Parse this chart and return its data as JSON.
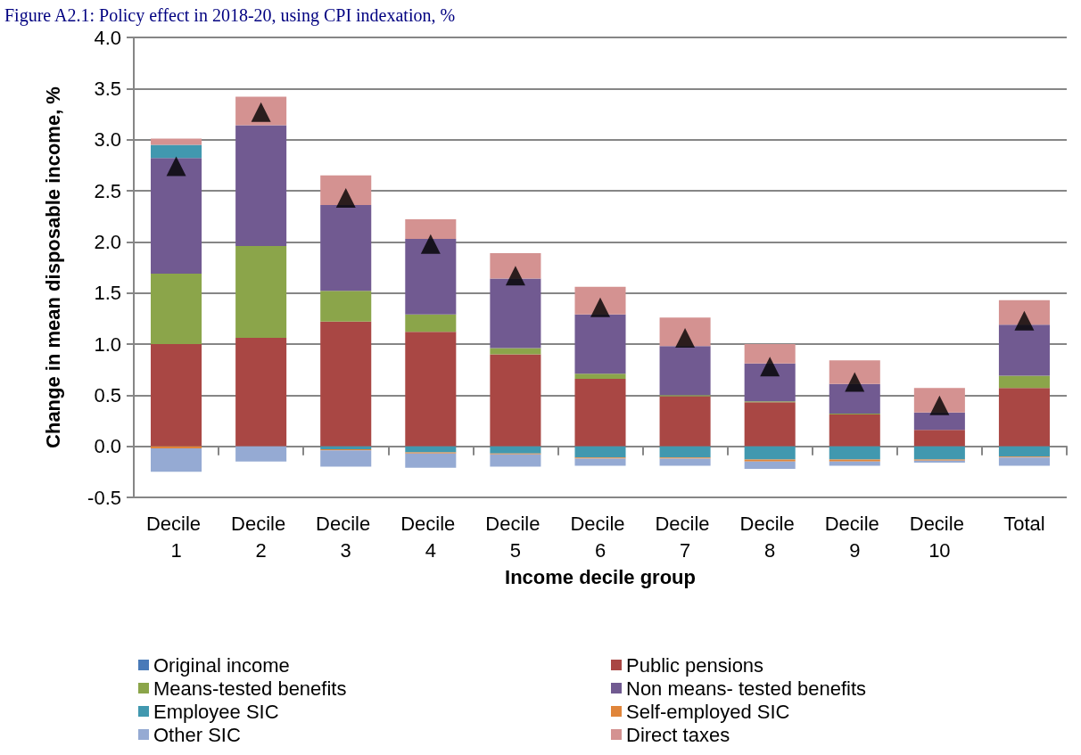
{
  "chart_data": {
    "type": "bar",
    "title": "Figure A2.1: Policy effect in 2018-20, using CPI indexation, %",
    "xlabel": "Income decile group",
    "ylabel": "Change in mean disposable income, %",
    "categories": [
      "Decile 1",
      "Decile 2",
      "Decile 3",
      "Decile 4",
      "Decile 5",
      "Decile 6",
      "Decile 7",
      "Decile 8",
      "Decile 9",
      "Decile 10",
      "Total"
    ],
    "stacked": true,
    "grid": "y",
    "legend": "bottom",
    "ylim": [
      -0.5,
      4.0
    ],
    "yticks": [
      {
        "value": -0.5,
        "label": "-0.5"
      },
      {
        "value": 0,
        "label": "0.0"
      },
      {
        "value": 0.5,
        "label": "0.5"
      },
      {
        "value": 1,
        "label": "1.0"
      },
      {
        "value": 1.5,
        "label": "1.5"
      },
      {
        "value": 2,
        "label": "2.0"
      },
      {
        "value": 2.5,
        "label": "2.5"
      },
      {
        "value": 3,
        "label": "3.0"
      },
      {
        "value": 3.5,
        "label": "3.5"
      },
      {
        "value": 4,
        "label": "4.0"
      }
    ],
    "series": [
      {
        "name": "Original income",
        "color": "#4a7ab8",
        "values": [
          0,
          0,
          0,
          0,
          0,
          0,
          0,
          0,
          0,
          0,
          0
        ]
      },
      {
        "name": "Public pensions",
        "color": "#a94744",
        "values": [
          1.0,
          1.06,
          1.22,
          1.12,
          0.9,
          0.66,
          0.49,
          0.43,
          0.31,
          0.16,
          0.57
        ]
      },
      {
        "name": "Means-tested benefits",
        "color": "#8ba54a",
        "values": [
          0.69,
          0.9,
          0.3,
          0.17,
          0.06,
          0.05,
          0.01,
          0.01,
          0.01,
          0,
          0.12
        ]
      },
      {
        "name": "Non means- tested benefits",
        "color": "#715a91",
        "values": [
          1.13,
          1.18,
          0.84,
          0.74,
          0.68,
          0.58,
          0.48,
          0.37,
          0.29,
          0.17,
          0.5
        ]
      },
      {
        "name": "Employee SIC",
        "color": "#4198af",
        "values": [
          0.13,
          0,
          -0.03,
          -0.06,
          -0.07,
          -0.11,
          -0.11,
          -0.13,
          -0.13,
          -0.13,
          -0.1
        ]
      },
      {
        "name": "Self-employed SIC",
        "color": "#e0853a",
        "values": [
          -0.02,
          0,
          -0.01,
          -0.01,
          -0.01,
          -0.01,
          -0.01,
          -0.02,
          -0.02,
          -0.01,
          -0.01
        ]
      },
      {
        "name": "Other SIC",
        "color": "#95aad3",
        "values": [
          -0.23,
          -0.15,
          -0.16,
          -0.14,
          -0.12,
          -0.07,
          -0.07,
          -0.07,
          -0.04,
          -0.02,
          -0.08
        ]
      },
      {
        "name": "Direct taxes",
        "color": "#d49291",
        "values": [
          0.06,
          0.28,
          0.29,
          0.19,
          0.25,
          0.27,
          0.28,
          0.19,
          0.23,
          0.24,
          0.24
        ]
      },
      {
        "type": "scatter",
        "marker": "triangle",
        "color": "#000000",
        "x": [
          "Decile 1",
          "Decile 2",
          "Decile 3",
          "Decile 4",
          "Decile 5",
          "Decile 6",
          "Decile 7",
          "Decile 8",
          "Decile 9",
          "Decile 10",
          "Total"
        ],
        "values": [
          2.74,
          3.27,
          2.43,
          1.98,
          1.67,
          1.36,
          1.06,
          0.78,
          0.63,
          0.4,
          1.23
        ]
      }
    ]
  }
}
